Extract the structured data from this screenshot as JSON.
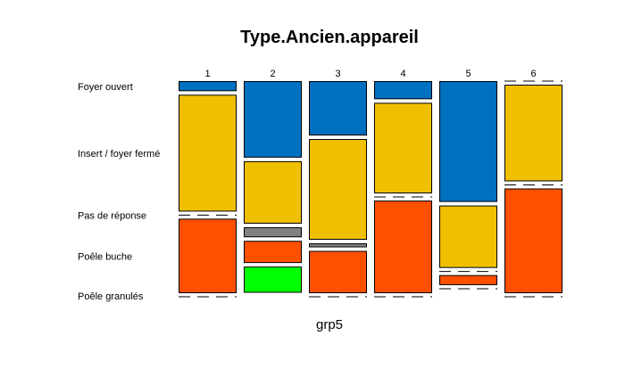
{
  "chart_data": {
    "type": "mosaic",
    "title": "Type.Ancien.appareil",
    "xlabel": "grp5",
    "ylabel": "",
    "grid": false,
    "categories": [
      "1",
      "2",
      "3",
      "4",
      "5",
      "6"
    ],
    "row_labels": [
      "Foyer ouvert",
      "Insert / foyer fermé",
      "Pas de réponse",
      "Poêle buche",
      "Poêle granulés"
    ],
    "series": [
      {
        "name": "Foyer ouvert",
        "color": "#0070C0",
        "values": [
          0.05,
          0.38,
          0.27,
          0.09,
          0.6,
          0.0
        ]
      },
      {
        "name": "Insert / foyer fermé",
        "color": "#F0C000",
        "values": [
          0.58,
          0.31,
          0.5,
          0.45,
          0.31,
          0.48
        ]
      },
      {
        "name": "Pas de réponse",
        "color": "#808080",
        "values": [
          0.0,
          0.05,
          0.02,
          0.0,
          0.0,
          0.0
        ]
      },
      {
        "name": "Poêle buche",
        "color": "#FF5000",
        "values": [
          0.37,
          0.11,
          0.21,
          0.46,
          0.05,
          0.52
        ]
      },
      {
        "name": "Poêle granulés",
        "color": "#00FF00",
        "values": [
          0.0,
          0.13,
          0.0,
          0.0,
          0.0,
          0.0
        ]
      }
    ]
  }
}
